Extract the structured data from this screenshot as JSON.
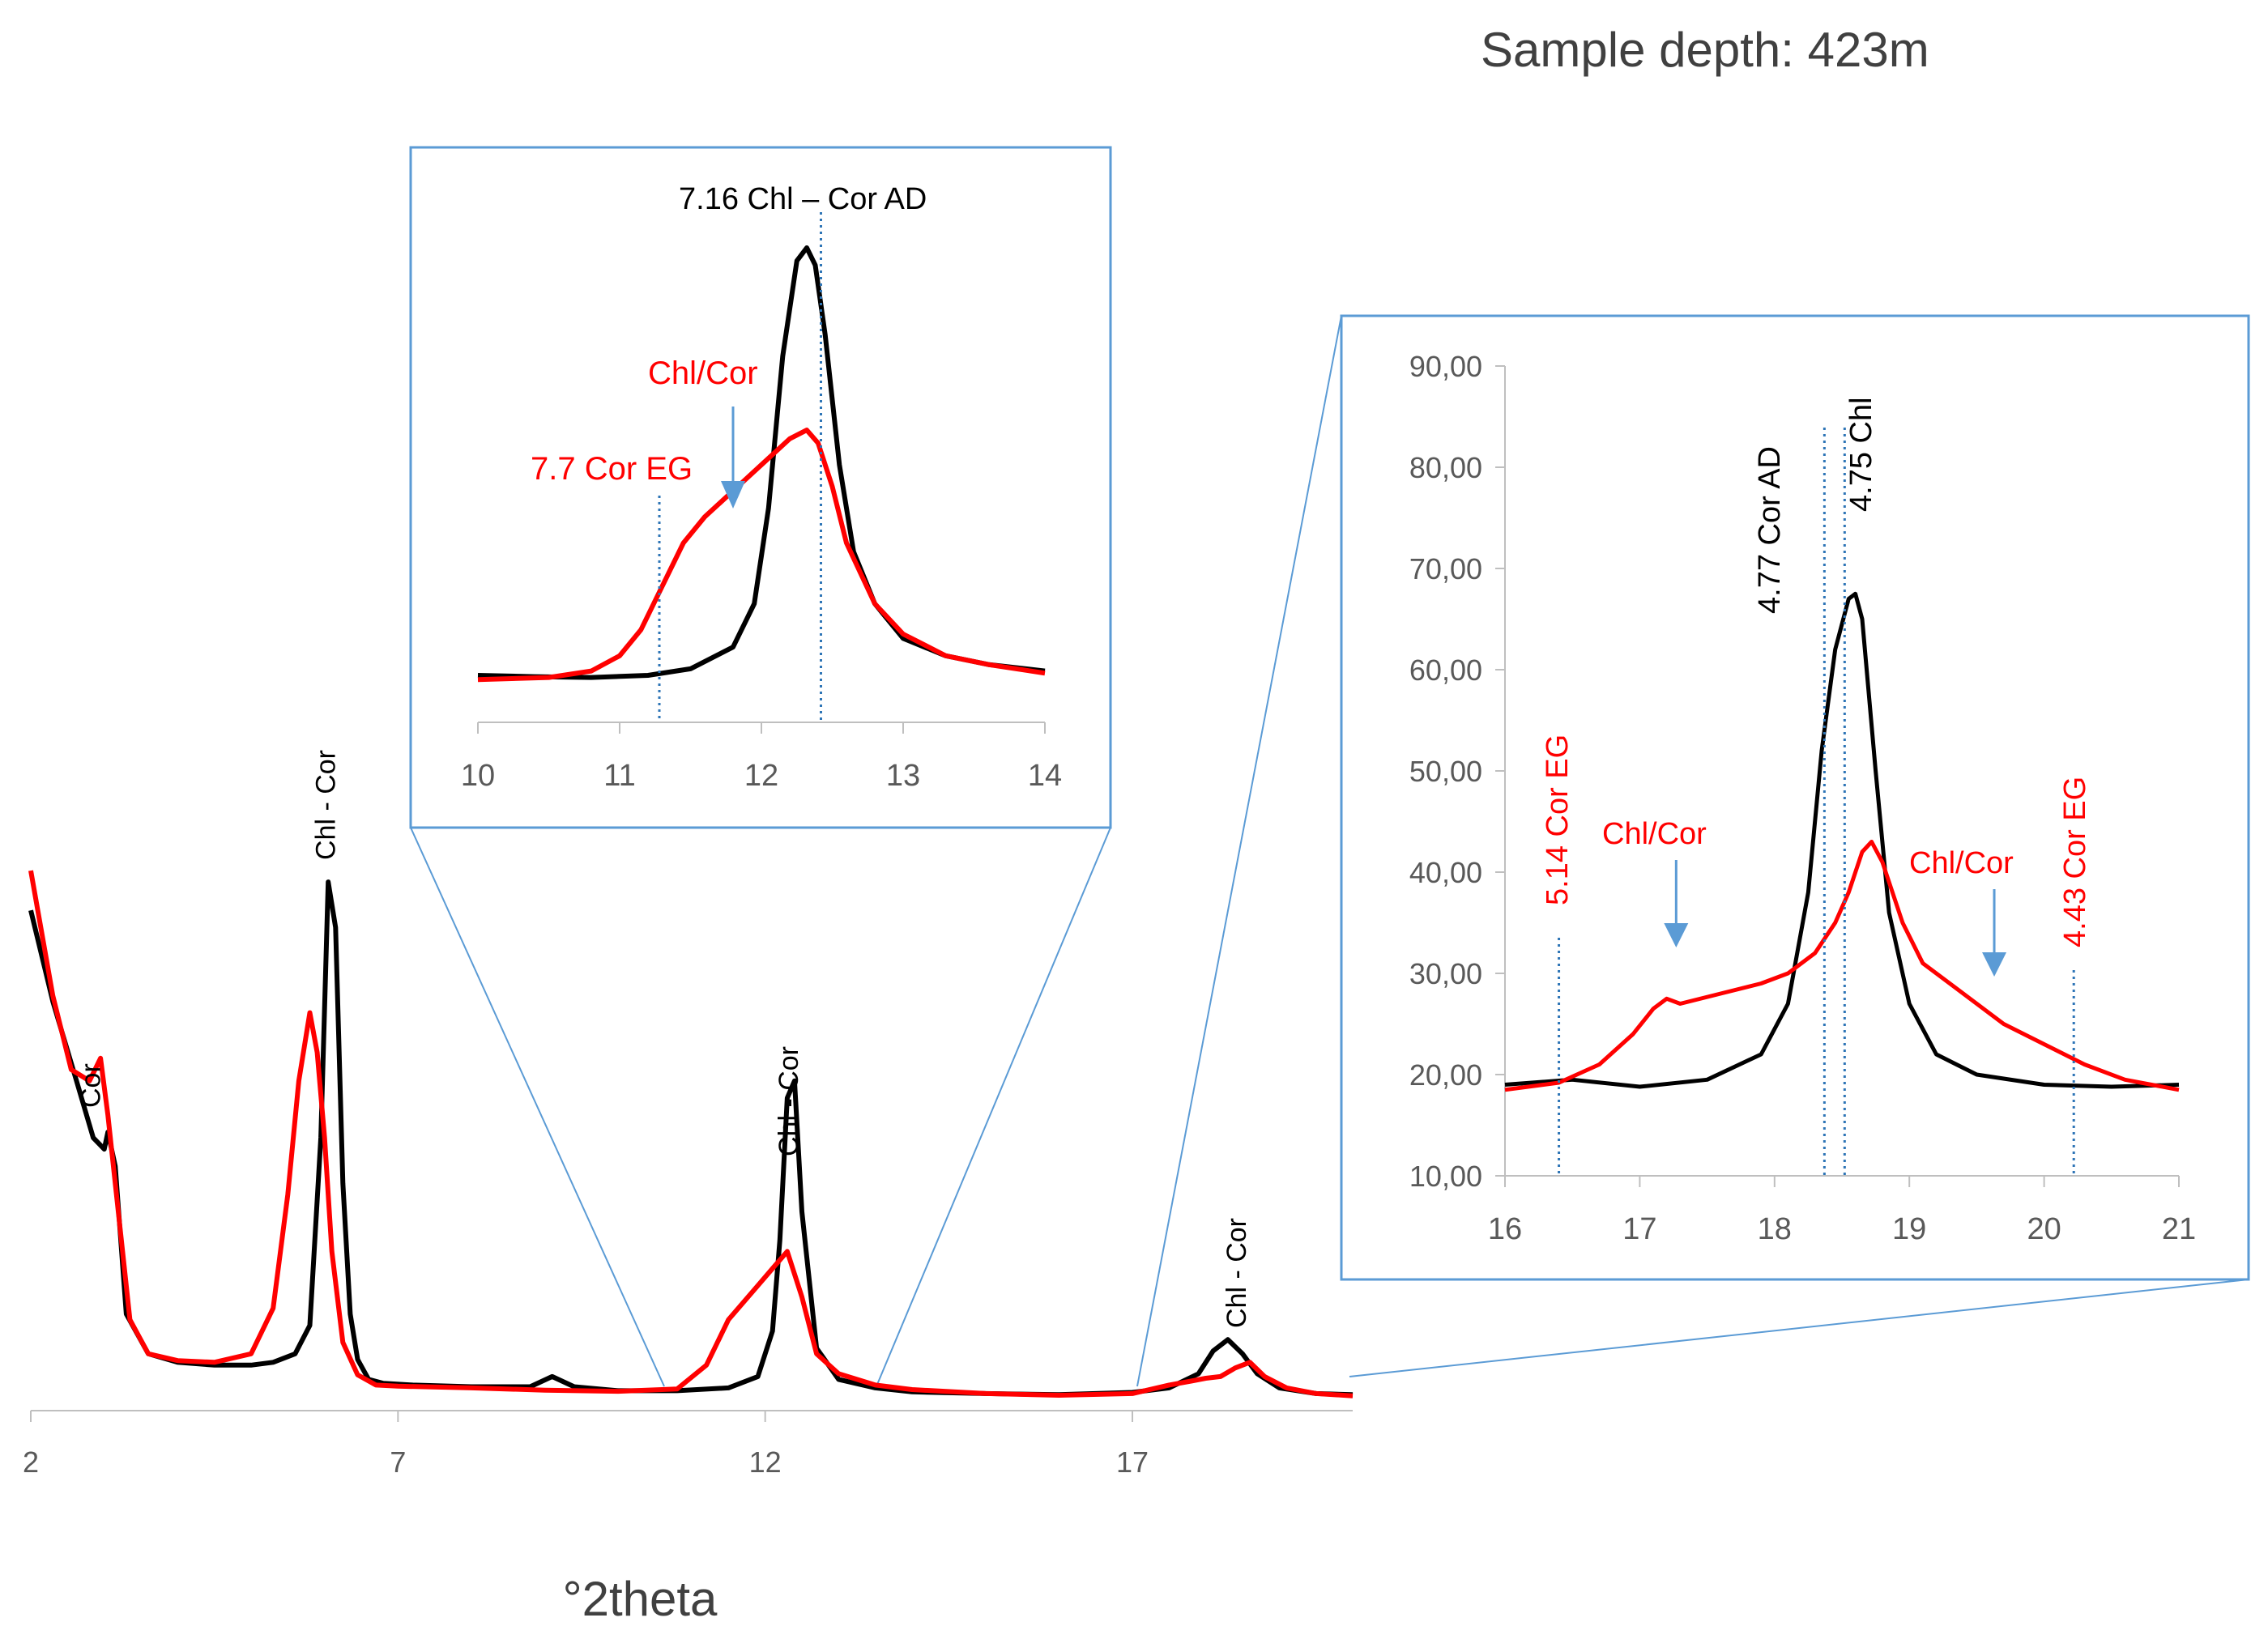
{
  "title": "Sample depth: 423m",
  "colors": {
    "ad": "#000000",
    "eg": "#ff0000",
    "box": "#5b9bd5",
    "marker": "#2e75b6",
    "axis": "#bfbfbf",
    "tick": "#595959"
  },
  "chart_data": [
    {
      "id": "main",
      "type": "line",
      "title": "",
      "xlabel": "°2theta",
      "ylabel": "",
      "xlim": [
        2,
        20
      ],
      "ylim": [
        0,
        100
      ],
      "xticks": [
        "2",
        "7",
        "12",
        "17"
      ],
      "grid": false,
      "series": [
        {
          "name": "AD",
          "color": "#000000",
          "x": [
            2.0,
            2.3,
            2.6,
            2.85,
            3.0,
            3.05,
            3.15,
            3.3,
            3.6,
            4.0,
            4.5,
            5.0,
            5.3,
            5.6,
            5.8,
            5.95,
            6.05,
            6.15,
            6.25,
            6.35,
            6.45,
            6.6,
            6.8,
            7.2,
            8.0,
            8.8,
            9.1,
            9.4,
            10.0,
            10.8,
            11.5,
            11.9,
            12.1,
            12.2,
            12.3,
            12.4,
            12.5,
            12.7,
            13.0,
            13.5,
            14.0,
            15.0,
            16.0,
            17.0,
            17.5,
            17.9,
            18.1,
            18.3,
            18.5,
            18.7,
            19.0,
            19.5,
            20.0
          ],
          "y": [
            88,
            72,
            59,
            48,
            46,
            49,
            43,
            17,
            10,
            8.5,
            8,
            8,
            8.5,
            10,
            15,
            48,
            93,
            85,
            40,
            17,
            9,
            5.5,
            4.8,
            4.5,
            4.2,
            4.2,
            6,
            4.2,
            3.5,
            3.5,
            4,
            6,
            14,
            30,
            55,
            58,
            35,
            11,
            5.5,
            4,
            3.3,
            3,
            2.8,
            3.2,
            4,
            6.5,
            10.5,
            12.5,
            10,
            6.5,
            4,
            3,
            2.8
          ]
        },
        {
          "name": "EG",
          "color": "#ff0000",
          "x": [
            2.0,
            2.3,
            2.55,
            2.8,
            2.95,
            3.05,
            3.2,
            3.35,
            3.6,
            4.0,
            4.5,
            5.0,
            5.3,
            5.5,
            5.65,
            5.8,
            5.9,
            6.0,
            6.1,
            6.25,
            6.45,
            6.7,
            7.0,
            8.0,
            9.0,
            10.0,
            10.8,
            11.2,
            11.5,
            11.7,
            11.9,
            12.1,
            12.3,
            12.5,
            12.7,
            13.0,
            13.5,
            14.0,
            15.0,
            16.0,
            17.0,
            17.5,
            17.8,
            18.0,
            18.2,
            18.4,
            18.6,
            18.8,
            19.1,
            19.5,
            20.0
          ],
          "y": [
            95,
            73,
            60,
            58,
            62,
            52,
            34,
            16,
            10,
            8.8,
            8.5,
            10,
            18,
            38,
            58,
            70,
            63,
            48,
            28,
            12,
            6.3,
            4.5,
            4.3,
            4,
            3.6,
            3.4,
            3.8,
            8,
            16,
            19,
            22,
            25,
            28,
            20,
            10,
            6.5,
            4.5,
            3.7,
            3,
            2.7,
            3,
            4.5,
            5.2,
            5.7,
            6,
            7.5,
            8.5,
            6,
            4,
            3,
            2.6
          ]
        }
      ],
      "annotations": [
        {
          "text": "Cor",
          "x": 2.8
        },
        {
          "text": "Chl - Cor",
          "x": 6.0
        },
        {
          "text": "Chl - Cor",
          "x": 12.3
        },
        {
          "text": "Chl - Cor",
          "x": 18.4
        }
      ]
    },
    {
      "id": "inset1",
      "type": "line",
      "xlim": [
        10,
        14
      ],
      "ylim": [
        0,
        100
      ],
      "xticks": [
        "10",
        "11",
        "12",
        "13",
        "14"
      ],
      "grid": false,
      "series": [
        {
          "name": "AD",
          "color": "#000000",
          "x": [
            10,
            10.4,
            10.8,
            11.2,
            11.5,
            11.8,
            11.95,
            12.05,
            12.15,
            12.25,
            12.32,
            12.38,
            12.45,
            12.55,
            12.65,
            12.8,
            13.0,
            13.3,
            13.6,
            14.0
          ],
          "y": [
            1.5,
            1.2,
            1.0,
            1.5,
            3,
            8,
            18,
            40,
            75,
            97,
            100,
            96,
            80,
            50,
            30,
            18,
            10,
            6,
            4,
            2.5
          ]
        },
        {
          "name": "EG",
          "color": "#ff0000",
          "x": [
            10,
            10.5,
            10.8,
            11.0,
            11.15,
            11.3,
            11.45,
            11.6,
            11.8,
            12.0,
            12.2,
            12.32,
            12.4,
            12.5,
            12.6,
            12.8,
            13.0,
            13.3,
            13.6,
            14.0
          ],
          "y": [
            0.5,
            1.0,
            2.5,
            6,
            12,
            22,
            32,
            38,
            44,
            50,
            56,
            58,
            55,
            45,
            32,
            18,
            11,
            6,
            4,
            2
          ]
        }
      ],
      "annotations": [
        {
          "text": "7.16 Chl – Cor AD",
          "marker_x": 12.42,
          "color": "#000000"
        },
        {
          "text": "7.7 Cor EG",
          "marker_x": 11.28,
          "color": "#ff0000"
        },
        {
          "text": "Chl/Cor",
          "arrow_x": 11.8,
          "color": "#ff0000"
        }
      ]
    },
    {
      "id": "inset2",
      "type": "line",
      "xlim": [
        16,
        21
      ],
      "ylim": [
        10,
        90
      ],
      "xticks": [
        "16",
        "17",
        "18",
        "19",
        "20",
        "21"
      ],
      "yticks": [
        "10,00",
        "20,00",
        "30,00",
        "40,00",
        "50,00",
        "60,00",
        "70,00",
        "80,00",
        "90,00"
      ],
      "grid": false,
      "series": [
        {
          "name": "AD",
          "color": "#000000",
          "x": [
            16,
            16.5,
            17.0,
            17.5,
            17.9,
            18.1,
            18.25,
            18.35,
            18.45,
            18.55,
            18.6,
            18.65,
            18.75,
            18.85,
            19.0,
            19.2,
            19.5,
            20.0,
            20.5,
            21.0
          ],
          "y": [
            19,
            19.5,
            18.8,
            19.5,
            22,
            27,
            38,
            52,
            62,
            67,
            67.5,
            65,
            50,
            36,
            27,
            22,
            20,
            19,
            18.8,
            19
          ]
        },
        {
          "name": "EG",
          "color": "#ff0000",
          "x": [
            16,
            16.4,
            16.7,
            16.95,
            17.1,
            17.2,
            17.3,
            17.6,
            17.9,
            18.1,
            18.3,
            18.45,
            18.55,
            18.65,
            18.72,
            18.8,
            18.95,
            19.1,
            19.4,
            19.7,
            20.0,
            20.3,
            20.6,
            21.0
          ],
          "y": [
            18.5,
            19.2,
            21,
            24,
            26.5,
            27.5,
            27,
            28,
            29,
            30,
            32,
            35,
            38,
            42,
            43,
            41,
            35,
            31,
            28,
            25,
            23,
            21,
            19.5,
            18.5
          ]
        }
      ],
      "annotations": [
        {
          "text": "5.14 Cor EG",
          "marker_x": 16.4,
          "color": "#ff0000"
        },
        {
          "text": "4.77 Cor AD",
          "marker_x": 18.37,
          "color": "#000000"
        },
        {
          "text": "4.75 Chl",
          "marker_x": 18.52,
          "color": "#000000"
        },
        {
          "text": "4.43 Cor EG",
          "marker_x": 20.22,
          "color": "#ff0000"
        },
        {
          "text": "Chl/Cor",
          "arrow_x": 17.27,
          "color": "#ff0000"
        },
        {
          "text": "Chl/Cor",
          "arrow_x": 19.63,
          "color": "#ff0000"
        }
      ]
    }
  ]
}
